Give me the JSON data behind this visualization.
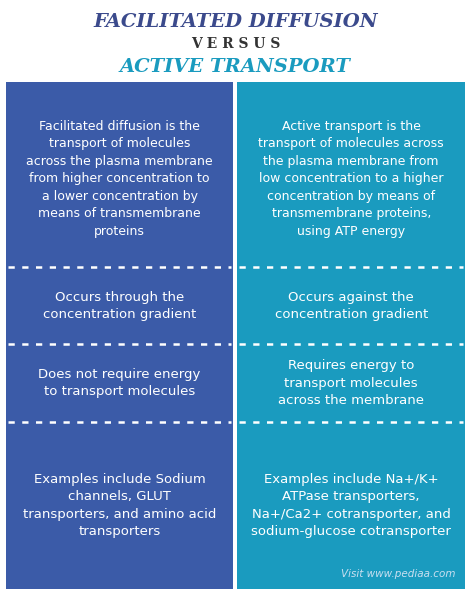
{
  "title1": "FACILITATED DIFFUSION",
  "title1_color": "#3b4a8c",
  "versus": "V E R S U S",
  "versus_color": "#333333",
  "title2": "ACTIVE TRANSPORT",
  "title2_color": "#1a9bbf",
  "left_bg": "#3b5ba8",
  "right_bg": "#1a9bbf",
  "text_color": "#ffffff",
  "footer_text": "Visit www.pediaa.com",
  "rows": [
    {
      "left": "Facilitated diffusion is the\ntransport of molecules\nacross the plasma membrane\nfrom higher concentration to\na lower concentration by\nmeans of transmembrane\nproteins",
      "right": "Active transport is the\ntransport of molecules across\nthe plasma membrane from\nlow concentration to a higher\nconcentration by means of\ntransmembrane proteins,\nusing ATP energy"
    },
    {
      "left": "Occurs through the\nconcentration gradient",
      "right": "Occurs against the\nconcentration gradient"
    },
    {
      "left": "Does not require energy\nto transport molecules",
      "right": "Requires energy to\ntransport molecules\nacross the membrane"
    },
    {
      "left": "Examples include Sodium\nchannels, GLUT\ntransporters, and amino acid\ntransporters",
      "right": "Examples include Na+/K+\nATPase transporters,\nNa+/Ca2+ cotransporter, and\nsodium-glucose cotransporter"
    }
  ]
}
